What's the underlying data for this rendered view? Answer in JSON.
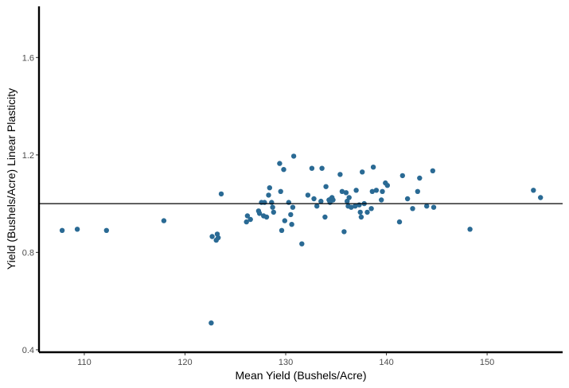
{
  "chart_data": {
    "type": "scatter",
    "title": "",
    "xlabel": "Mean Yield (Bushels/Acre)",
    "ylabel": "Yield (Bushels/Acre) Linear Plasticity",
    "xlim": [
      105.5,
      157.5
    ],
    "ylim": [
      0.39,
      1.81
    ],
    "x_ticks": [
      110,
      120,
      130,
      140,
      150
    ],
    "y_ticks": [
      0.4,
      0.8,
      1.2,
      1.6
    ],
    "reference_line_y": 1.0,
    "grid": false,
    "point_color": "#2a6a94",
    "line_color": "#000000",
    "points": [
      [
        107.8,
        0.89
      ],
      [
        109.3,
        0.895
      ],
      [
        112.2,
        0.89
      ],
      [
        117.9,
        0.93
      ],
      [
        122.6,
        0.51
      ],
      [
        122.7,
        0.865
      ],
      [
        123.1,
        0.85
      ],
      [
        123.2,
        0.875
      ],
      [
        123.3,
        0.86
      ],
      [
        123.6,
        1.04
      ],
      [
        126.1,
        0.925
      ],
      [
        126.2,
        0.95
      ],
      [
        126.5,
        0.935
      ],
      [
        127.3,
        0.97
      ],
      [
        127.4,
        0.96
      ],
      [
        127.6,
        1.005
      ],
      [
        127.8,
        0.95
      ],
      [
        127.9,
        1.005
      ],
      [
        128.1,
        0.945
      ],
      [
        128.3,
        1.035
      ],
      [
        128.4,
        1.065
      ],
      [
        128.6,
        1.005
      ],
      [
        128.7,
        0.985
      ],
      [
        128.8,
        0.965
      ],
      [
        129.4,
        1.165
      ],
      [
        129.5,
        1.05
      ],
      [
        129.6,
        0.89
      ],
      [
        129.8,
        1.14
      ],
      [
        129.9,
        0.93
      ],
      [
        130.3,
        1.005
      ],
      [
        130.5,
        0.955
      ],
      [
        130.6,
        0.915
      ],
      [
        130.7,
        0.985
      ],
      [
        130.8,
        1.195
      ],
      [
        131.6,
        0.835
      ],
      [
        132.2,
        1.035
      ],
      [
        132.6,
        1.145
      ],
      [
        132.8,
        1.02
      ],
      [
        133.1,
        0.99
      ],
      [
        133.5,
        1.01
      ],
      [
        133.6,
        1.145
      ],
      [
        133.9,
        0.945
      ],
      [
        134.0,
        1.07
      ],
      [
        134.3,
        1.015
      ],
      [
        134.4,
        1.005
      ],
      [
        134.5,
        1.02
      ],
      [
        134.6,
        1.025
      ],
      [
        134.7,
        1.015
      ],
      [
        135.4,
        1.12
      ],
      [
        135.6,
        1.05
      ],
      [
        135.8,
        0.885
      ],
      [
        136.0,
        1.045
      ],
      [
        136.1,
        1.01
      ],
      [
        136.2,
        0.99
      ],
      [
        136.3,
        1.025
      ],
      [
        136.5,
        0.985
      ],
      [
        136.9,
        0.99
      ],
      [
        137.0,
        1.055
      ],
      [
        137.3,
        0.995
      ],
      [
        137.4,
        0.965
      ],
      [
        137.5,
        0.945
      ],
      [
        137.6,
        1.13
      ],
      [
        137.8,
        1.0
      ],
      [
        138.1,
        0.965
      ],
      [
        138.5,
        0.98
      ],
      [
        138.6,
        1.05
      ],
      [
        138.7,
        1.15
      ],
      [
        139.0,
        1.055
      ],
      [
        139.5,
        1.015
      ],
      [
        139.6,
        1.05
      ],
      [
        139.9,
        1.085
      ],
      [
        140.1,
        1.075
      ],
      [
        141.3,
        0.925
      ],
      [
        141.6,
        1.115
      ],
      [
        142.1,
        1.02
      ],
      [
        142.6,
        0.98
      ],
      [
        143.1,
        1.05
      ],
      [
        143.3,
        1.105
      ],
      [
        144.0,
        0.99
      ],
      [
        144.6,
        1.135
      ],
      [
        144.7,
        0.985
      ],
      [
        148.3,
        0.895
      ],
      [
        154.6,
        1.055
      ],
      [
        155.3,
        1.025
      ]
    ]
  }
}
